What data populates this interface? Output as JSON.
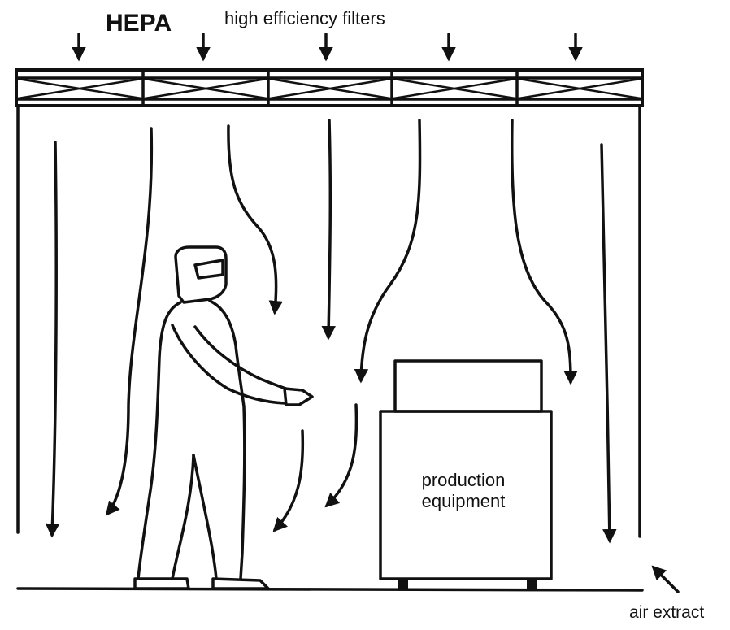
{
  "labels": {
    "hepa": "HEPA",
    "filters": "high efficiency filters",
    "equipment_line1": "production",
    "equipment_line2": "equipment",
    "air_extract": "air extract"
  },
  "colors": {
    "ink": "#111111",
    "background": "#ffffff"
  }
}
